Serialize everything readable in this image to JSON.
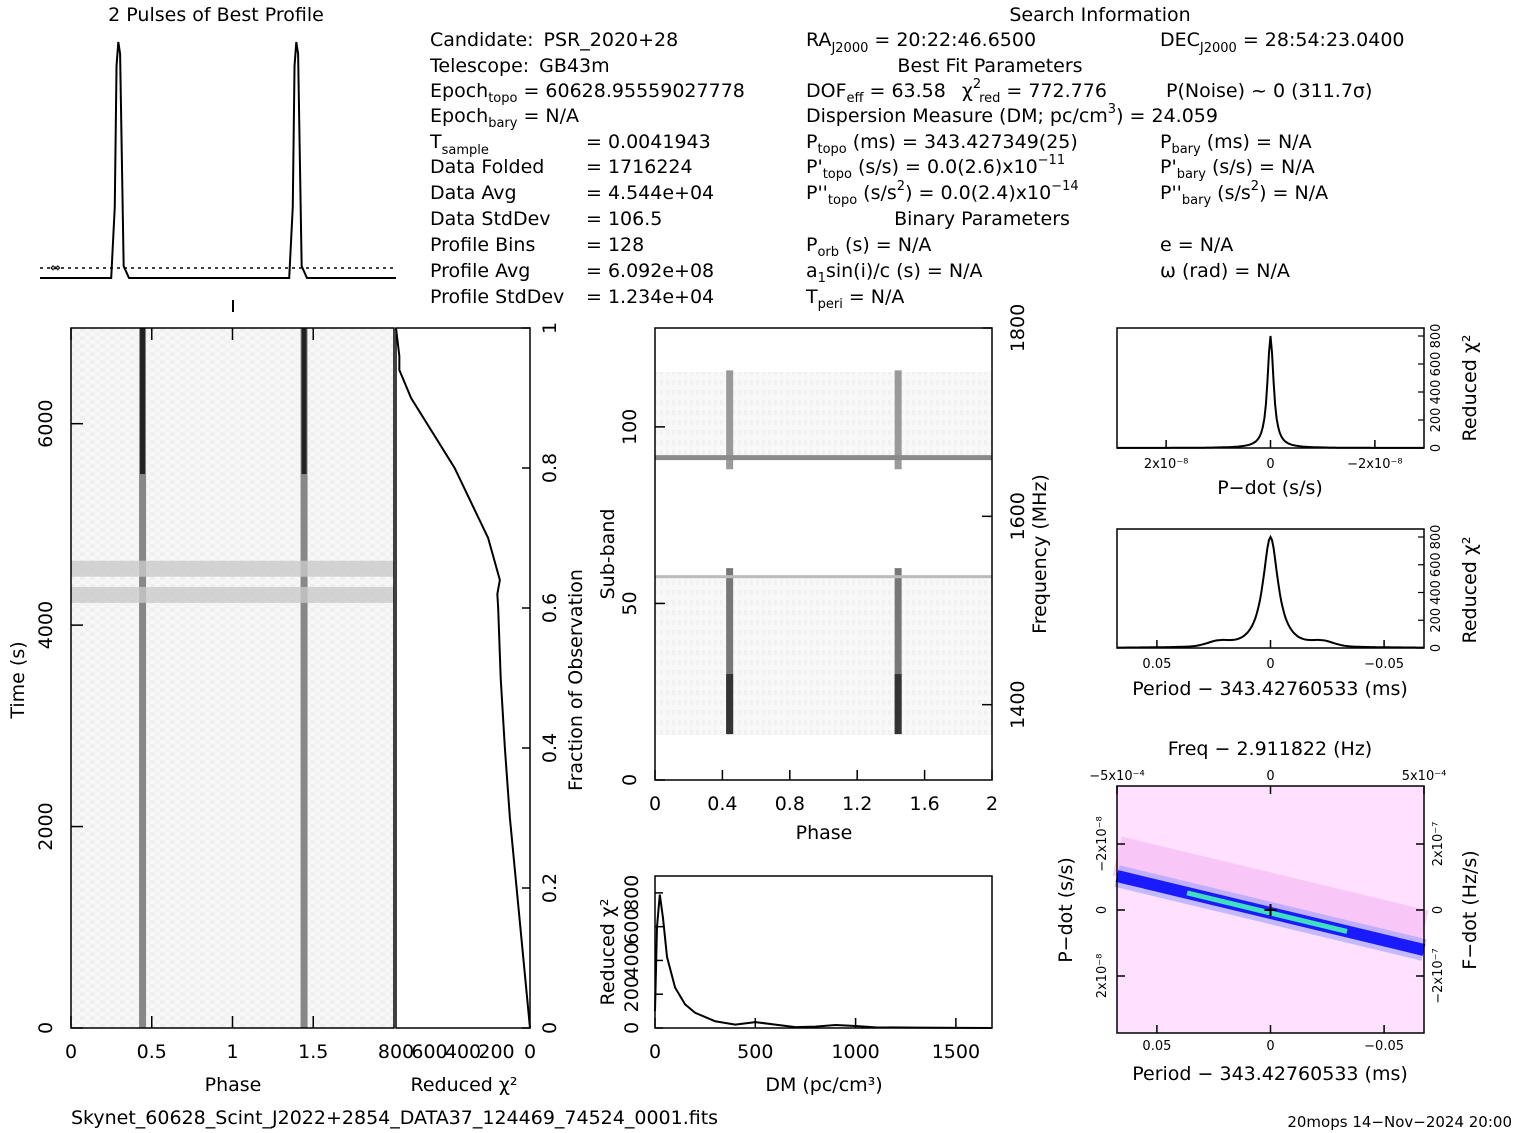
{
  "header": {
    "profile_title": "2 Pulses of Best Profile",
    "search_title": "Search Information",
    "best_fit_title": "Best Fit Parameters",
    "binary_title": "Binary Parameters"
  },
  "info_rows": [
    [
      "Candidate:  PSR_2020+28",
      "RA",
      "J2000",
      " = 20:22:46.6500",
      "DEC",
      "J2000",
      " = 28:54:23.0400"
    ],
    [
      "Telescope:  GB43m"
    ],
    [
      "Epoch",
      "topo",
      " = 60628.95559027778",
      "DOF",
      "eff",
      " = 63.58  χ² red = 772.776",
      "P(Noise) ~ 0   (311.7σ)"
    ],
    [
      "Epoch",
      "bary",
      " = N/A",
      "Dispersion Measure (DM; pc/cm³) = 24.059"
    ],
    [
      "T",
      "sample",
      "=   0.0041943",
      "P",
      "topo",
      " (ms) =  343.427349(25)",
      "P",
      "bary",
      " (ms) = N/A"
    ],
    [
      "Data Folded",
      "=   1716224",
      "P'",
      "topo",
      " (s/s) = 0.0(2.6)x10⁻¹¹",
      "P'",
      "bary",
      " (s/s) = N/A"
    ],
    [
      "Data Avg",
      "=   4.544e+04",
      "P''",
      "topo",
      " (s/s²) = 0.0(2.4)x10⁻¹⁴",
      "P''",
      "bary",
      " (s/s²) = N/A"
    ],
    [
      "Data StdDev",
      "=   106.5"
    ],
    [
      "Profile Bins",
      "=   128",
      "P",
      "orb",
      " (s) = N/A",
      "e = N/A"
    ],
    [
      "Profile Avg",
      "=   6.092e+08",
      "a",
      "1",
      "sin(i)/c (s) = N/A",
      "ω (rad) = N/A"
    ],
    [
      "Profile StdDev",
      "=   1.234e+04",
      "T",
      "peri",
      " = N/A"
    ]
  ],
  "left_col": [
    {
      "label": "Candidate:",
      "value": "PSR_2020+28"
    },
    {
      "label": "Telescope:",
      "value": "GB43m"
    },
    {
      "label": "Epoch",
      "sub": "topo",
      "value": "= 60628.95559027778"
    },
    {
      "label": "Epoch",
      "sub": "bary",
      "value": "= N/A"
    },
    {
      "label": "T",
      "sub": "sample",
      "value": "=   0.0041943"
    },
    {
      "label": "Data Folded",
      "value": "=   1716224"
    },
    {
      "label": "Data Avg",
      "value": "=   4.544e+04"
    },
    {
      "label": "Data StdDev",
      "value": "=   106.5"
    },
    {
      "label": "Profile Bins",
      "value": "=   128"
    },
    {
      "label": "Profile Avg",
      "value": "=   6.092e+08"
    },
    {
      "label": "Profile StdDev",
      "value": "=   1.234e+04"
    }
  ],
  "ra_label": "RA",
  "ra_sub": "J2000",
  "ra_value": "= 20:22:46.6500",
  "dec_label": "DEC",
  "dec_sub": "J2000",
  "dec_value": "= 28:54:23.0400",
  "dof_label": "DOF",
  "dof_sub": "eff",
  "dof_value": "= 63.58",
  "chi_label": "χ",
  "chi_sup": "2",
  "chi_sub": "red",
  "chi_value": "= 772.776",
  "pnoise": "P(Noise) ~ 0    (311.7σ)",
  "dm_text": "Dispersion Measure (DM; pc/cm",
  "dm_sup": "3",
  "dm_value": ") = 24.059",
  "ptopo_label": "P",
  "ptopo_sub": "topo",
  "ptopo_value": "(ms) =  343.427349(25)",
  "pbary_label": "P",
  "pbary_sub": "bary",
  "pbary_value": "(ms) = N/A",
  "pdtopo_label": "P'",
  "pdtopo_sub": "topo",
  "pdtopo_value": "(s/s) = 0.0(2.6)x10",
  "pdtopo_exp": "−11",
  "pdbary_label": "P'",
  "pdbary_sub": "bary",
  "pdbary_value": "(s/s) = N/A",
  "pddtopo_label": "P''",
  "pddtopo_sub": "topo",
  "pddtopo_value": "(s/s",
  "pddtopo_value2": ") = 0.0(2.4)x10",
  "pddtopo_exp": "−14",
  "pddbary_label": "P''",
  "pddbary_sub": "bary",
  "pddbary_value": "(s/s",
  "pddbary_value2": ") = N/A",
  "porb_label": "P",
  "porb_sub": "orb",
  "porb_value": "(s) = N/A",
  "e_value": "e = N/A",
  "asini_label": "a",
  "asini_sub": "1",
  "asini_value": "sin(i)/c (s) = N/A",
  "omega_value": "ω (rad) = N/A",
  "tperi_label": "T",
  "tperi_sub": "peri",
  "tperi_value": "= N/A",
  "sup2": "2",
  "footer": {
    "filename": "Skynet_60628_Scint_J2022+2854_DATA37_124469_74524_0001.fits",
    "stamp": "20mops 14−Nov−2024 20:00"
  },
  "colors": {
    "ink": "#000000",
    "ppdot_bg": "#ffe0ff",
    "ppdot_band": "#1a1aff",
    "ppdot_core": "#3fe0c0"
  },
  "chart_data": [
    {
      "id": "profile",
      "type": "line",
      "title": "2 Pulses of Best Profile",
      "x": [
        0,
        0.4,
        0.42,
        0.43,
        0.44,
        0.45,
        0.46,
        0.47,
        0.5,
        1.0,
        1.4,
        1.42,
        1.43,
        1.44,
        1.45,
        1.46,
        1.47,
        1.5,
        2.0
      ],
      "y": [
        0.0,
        0.0,
        0.3,
        0.9,
        1.0,
        0.95,
        0.5,
        0.05,
        0.0,
        0.0,
        0.0,
        0.3,
        0.9,
        1.0,
        0.95,
        0.5,
        0.05,
        0.0,
        0.0
      ]
    },
    {
      "id": "time-phase",
      "type": "heatmap",
      "xlabel": "Phase",
      "ylabel": "Time (s)",
      "xlim": [
        0,
        2
      ],
      "ylim": [
        0,
        6950
      ],
      "xticks": [
        "0",
        "0.5",
        "1",
        "1.5"
      ],
      "yticks": [
        "0",
        "2000",
        "4000",
        "6000"
      ],
      "pulse_phases": [
        0.44,
        1.44
      ],
      "rfi_times": [
        4560,
        4300
      ]
    },
    {
      "id": "chi-vs-fraction",
      "type": "line",
      "xlabel": "Reduced χ²",
      "ylabel": "Fraction of Observation",
      "xticks": [
        "800",
        "600",
        "400",
        "200",
        "0"
      ],
      "yticks": [
        "0",
        "0.2",
        "0.4",
        "0.6",
        "0.8",
        "1"
      ],
      "fraction": [
        0.0,
        0.05,
        0.1,
        0.2,
        0.3,
        0.4,
        0.5,
        0.6,
        0.62,
        0.64,
        0.7,
        0.8,
        0.9,
        0.94,
        0.96,
        1.0
      ],
      "chi": [
        0,
        20,
        40,
        80,
        120,
        150,
        175,
        190,
        195,
        180,
        250,
        450,
        710,
        780,
        780,
        800
      ]
    },
    {
      "id": "subband-phase",
      "type": "heatmap",
      "xlabel": "Phase",
      "ylabel": "Sub-band",
      "y2label": "Frequency (MHz)",
      "xticks": [
        "0",
        "0.4",
        "0.8",
        "1.2",
        "1.6",
        "2"
      ],
      "yticks": [
        "0",
        "50",
        "100"
      ],
      "y2ticks": [
        "1400",
        "1600",
        "1800"
      ],
      "pulse_phases": [
        0.44,
        1.44
      ]
    },
    {
      "id": "dm-curve",
      "type": "line",
      "xlabel": "DM (pc/cm³)",
      "ylabel": "Reduced χ²",
      "xticks": [
        "0",
        "500",
        "1000",
        "1500"
      ],
      "yticks": [
        "0",
        "200",
        "400",
        "600",
        "800"
      ],
      "x": [
        0,
        10,
        24,
        40,
        60,
        100,
        150,
        200,
        300,
        400,
        500,
        600,
        700,
        800,
        900,
        1000,
        1100,
        1300,
        1680
      ],
      "y": [
        100,
        600,
        790,
        650,
        420,
        240,
        140,
        90,
        40,
        20,
        35,
        20,
        5,
        8,
        18,
        12,
        4,
        2,
        0
      ]
    },
    {
      "id": "pdot-curve",
      "type": "line",
      "xlabel": "P−dot (s/s)",
      "ylabel": "Reduced χ²",
      "xticks": [
        "2x10⁻⁸",
        "0",
        "−2x10⁻⁸"
      ],
      "yticks": [
        "0",
        "200",
        "400",
        "600",
        "800"
      ]
    },
    {
      "id": "period-curve",
      "type": "line",
      "xlabel": "Period − 343.42760533 (ms)",
      "ylabel": "Reduced χ²",
      "xticks": [
        "0.05",
        "0",
        "−0.05"
      ],
      "yticks": [
        "0",
        "200",
        "400",
        "600",
        "800"
      ]
    },
    {
      "id": "p-pdot",
      "type": "heatmap",
      "title": "Freq − 2.911822 (Hz)",
      "xlabel": "Period − 343.42760533 (ms)",
      "ylabel": "P−dot (s/s)",
      "y2label": "F−dot (Hz/s)",
      "xticks": [
        "0.05",
        "0",
        "−0.05"
      ],
      "x2ticks": [
        "−5x10⁻⁴",
        "0",
        "5x10⁻⁴"
      ],
      "yticks": [
        "−2x10⁻⁸",
        "0",
        "2x10⁻⁸"
      ],
      "y2ticks": [
        "2x10⁻⁷",
        "0",
        "−2x10⁻⁷"
      ]
    }
  ]
}
